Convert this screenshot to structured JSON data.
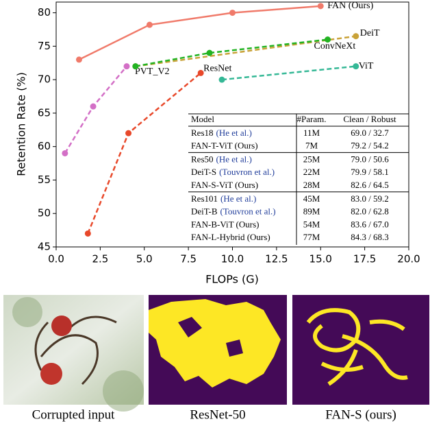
{
  "chart_data": {
    "type": "line",
    "xlabel": "FLOPs (G)",
    "ylabel": "Retention Rate (%)",
    "xlim": [
      0,
      20
    ],
    "ylim": [
      45,
      81.6
    ],
    "xticks": [
      {
        "value": 0,
        "label": "0.0"
      },
      2.5,
      {
        "value": 5,
        "label": "5.0"
      },
      7.5,
      {
        "value": 10,
        "label": "10.0"
      },
      12.5,
      {
        "value": 15,
        "label": "15.0"
      },
      17.5,
      {
        "value": 20,
        "label": "20.0"
      }
    ],
    "yticks": [
      45,
      50,
      55,
      60,
      65,
      70,
      75,
      80
    ],
    "series": [
      {
        "name": "FAN (Ours)",
        "color": "#f07a6a",
        "dashed": false,
        "x": [
          1.3,
          5.3,
          10,
          15
        ],
        "values": [
          73,
          78.2,
          80,
          81
        ]
      },
      {
        "name": "PVT_V2",
        "color": "#d36fc6",
        "dashed": true,
        "x": [
          0.5,
          2.1,
          4
        ],
        "values": [
          59,
          66,
          72
        ]
      },
      {
        "name": "ResNet",
        "color": "#e8482a",
        "dashed": true,
        "x": [
          1.8,
          4.1,
          8.2
        ],
        "values": [
          47,
          62,
          71
        ]
      },
      {
        "name": "DeiT",
        "color": "#c9a238",
        "dashed": true,
        "x": [
          4.5,
          17
        ],
        "values": [
          72,
          76.5
        ]
      },
      {
        "name": "ConvNeXt",
        "color": "#22b322",
        "dashed": true,
        "x": [
          4.5,
          8.7,
          15.4
        ],
        "values": [
          72,
          74,
          76
        ]
      },
      {
        "name": "ViT",
        "color": "#35b896",
        "dashed": true,
        "x": [
          9.4,
          17
        ],
        "values": [
          70,
          72
        ]
      }
    ]
  },
  "table": {
    "header": [
      "Model",
      "#Param.",
      "Clean / Robust"
    ],
    "groups": [
      [
        {
          "model": "Res18",
          "cite": "(He et al.)",
          "params": "11M",
          "scores": "69.0 / 32.7"
        },
        {
          "model": "FAN-T-ViT (Ours)",
          "params": "7M",
          "scores": "79.2 / 54.2"
        }
      ],
      [
        {
          "model": "Res50",
          "cite": "(He et al.)",
          "params": "25M",
          "scores": "79.0 / 50.6"
        },
        {
          "model": "DeiT-S",
          "cite": "(Touvron et al.)",
          "params": "22M",
          "scores": "79.9 / 58.1"
        },
        {
          "model": "FAN-S-ViT (Ours)",
          "params": "28M",
          "scores": "82.6 / 64.5"
        }
      ],
      [
        {
          "model": "Res101",
          "cite": "(He et al.)",
          "params": "45M",
          "scores": "83.0 / 59.2"
        },
        {
          "model": "DeiT-B",
          "cite": "(Touvron et al.)",
          "params": "89M",
          "scores": "82.0 / 62.8"
        },
        {
          "model": "FAN-B-ViT (Ours)",
          "params": "54M",
          "scores": "83.6 / 67.0"
        },
        {
          "model": "FAN-L-Hybrid (Ours)",
          "params": "77M",
          "scores": "84.3 / 68.3"
        }
      ]
    ]
  },
  "images": [
    {
      "caption": "Corrupted input"
    },
    {
      "caption": "ResNet-50"
    },
    {
      "caption": "FAN-S (ours)"
    }
  ]
}
